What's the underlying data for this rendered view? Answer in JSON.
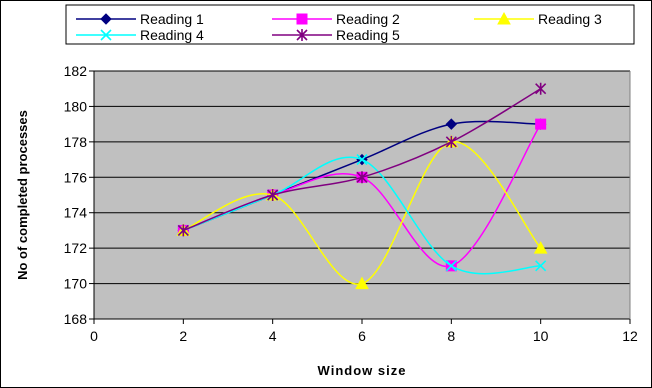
{
  "chart_data": {
    "type": "line",
    "title": "",
    "xlabel": "Window size",
    "ylabel": "No of completed processes",
    "xlim": [
      0,
      12
    ],
    "ylim": [
      168,
      182
    ],
    "x_ticks": [
      0,
      2,
      4,
      6,
      8,
      10,
      12
    ],
    "y_ticks": [
      168,
      170,
      172,
      174,
      176,
      178,
      180,
      182
    ],
    "grid": true,
    "plot_background": "#c0c0c0",
    "legend_position": "top",
    "smooth": true,
    "series": [
      {
        "name": "Reading 1",
        "color": "#000080",
        "marker": "diamond",
        "x": [
          2,
          4,
          6,
          8,
          10
        ],
        "y": [
          173,
          175,
          177,
          179,
          179
        ]
      },
      {
        "name": "Reading 2",
        "color": "#ff00ff",
        "marker": "square",
        "x": [
          2,
          4,
          6,
          8,
          10
        ],
        "y": [
          173,
          175,
          176,
          171,
          179
        ]
      },
      {
        "name": "Reading 3",
        "color": "#ffff00",
        "marker": "triangle",
        "x": [
          2,
          4,
          6,
          8,
          10
        ],
        "y": [
          173,
          175,
          170,
          178,
          172
        ]
      },
      {
        "name": "Reading 4",
        "color": "#00ffff",
        "marker": "x",
        "x": [
          2,
          4,
          6,
          8,
          10
        ],
        "y": [
          173,
          175,
          177,
          171,
          171
        ]
      },
      {
        "name": "Reading 5",
        "color": "#800080",
        "marker": "star",
        "x": [
          2,
          4,
          6,
          8,
          10
        ],
        "y": [
          173,
          175,
          176,
          178,
          181
        ]
      }
    ]
  }
}
